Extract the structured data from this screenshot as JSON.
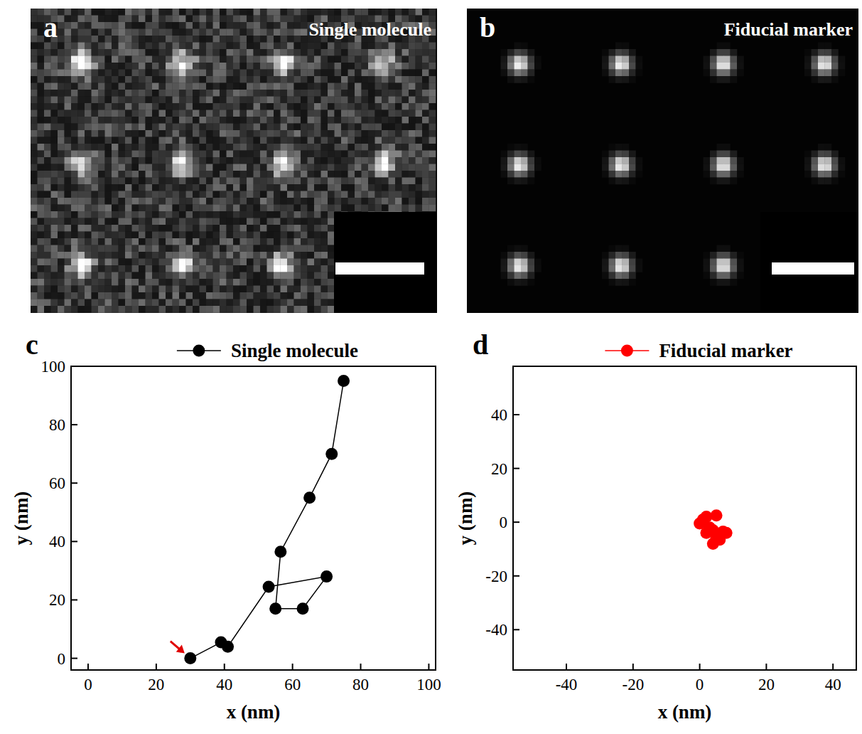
{
  "panels": [
    {
      "label": "a",
      "title": "Single molecule"
    },
    {
      "label": "b",
      "title": "Fiducial marker"
    }
  ],
  "chart_data": [
    {
      "label": "c",
      "type": "line",
      "x_label": "x (nm)",
      "y_label": "y (nm)",
      "xlim": [
        -5,
        102
      ],
      "ylim": [
        -4,
        100
      ],
      "xticks": [
        0,
        20,
        40,
        60,
        80,
        100
      ],
      "yticks": [
        0,
        20,
        40,
        60,
        80,
        100
      ],
      "legend": "top",
      "series": [
        {
          "name": "Single molecule",
          "color": "#000000",
          "marker": "circle",
          "line_style": "solid",
          "x": [
            30,
            39,
            41,
            53,
            70,
            63,
            55,
            56.5,
            65,
            71.5,
            75
          ],
          "values": [
            0,
            5.5,
            4,
            24.5,
            28,
            17,
            17,
            36.5,
            55,
            70,
            95
          ]
        }
      ]
    },
    {
      "label": "d",
      "type": "scatter",
      "x_label": "x (nm)",
      "y_label": "y (nm)",
      "xlim": [
        -56,
        47
      ],
      "ylim": [
        -55,
        58
      ],
      "xticks": [
        -40,
        -20,
        0,
        20,
        40
      ],
      "yticks": [
        -40,
        -20,
        0,
        20,
        40
      ],
      "legend": "top",
      "series": [
        {
          "name": "Fiducial marker",
          "color": "#ff0000",
          "marker": "circle",
          "x": [
            0,
            1,
            2,
            3,
            5,
            2,
            4,
            6,
            7,
            8,
            5,
            6,
            4
          ],
          "values": [
            -0.5,
            1,
            2,
            -2,
            2.5,
            -4,
            -3,
            -4.5,
            -3.5,
            -4,
            -6,
            -6.5,
            -8
          ]
        }
      ]
    }
  ]
}
